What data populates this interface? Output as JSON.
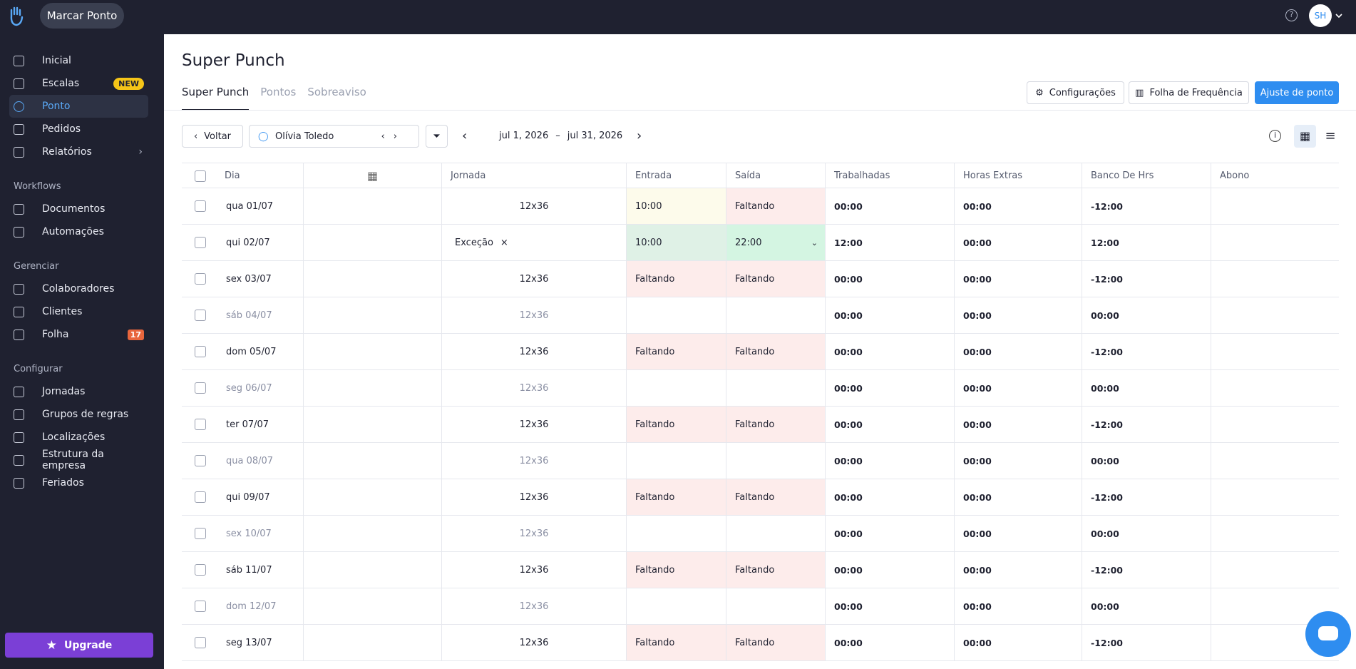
{
  "topbar": {
    "button": "Marcar Ponto",
    "avatar": "SH"
  },
  "sidebar": {
    "main": [
      {
        "label": "Inicial"
      },
      {
        "label": "Escalas",
        "badge": "NEW",
        "badge_color": "#f5c518"
      },
      {
        "label": "Ponto",
        "active": true
      },
      {
        "label": "Pedidos"
      },
      {
        "label": "Relatórios",
        "submenu": true
      }
    ],
    "sections": [
      {
        "title": "Workflows",
        "items": [
          {
            "label": "Documentos"
          },
          {
            "label": "Automações"
          }
        ]
      },
      {
        "title": "Gerenciar",
        "items": [
          {
            "label": "Colaboradores"
          },
          {
            "label": "Clientes"
          },
          {
            "label": "Folha",
            "badge": "17",
            "badge_color": "#e8663d"
          }
        ]
      },
      {
        "title": "Configurar",
        "items": [
          {
            "label": "Jornadas"
          },
          {
            "label": "Grupos de regras"
          },
          {
            "label": "Localizações"
          },
          {
            "label": "Estrutura da empresa"
          },
          {
            "label": "Feriados"
          }
        ]
      }
    ],
    "upgrade": "Upgrade"
  },
  "page": {
    "title": "Super Punch",
    "tabs": [
      "Super Punch",
      "Pontos",
      "Sobreaviso"
    ],
    "buttons": [
      "Configurações",
      "Folha de Frequência",
      "Ajuste de ponto"
    ]
  },
  "toolbar": {
    "back": "Voltar",
    "employee": "Olívia Toledo",
    "date_start": "jul 1, 2026",
    "date_sep": "–",
    "date_end": "jul 31, 2026"
  },
  "table": {
    "columns": [
      "Dia",
      "Jornada",
      "Entrada",
      "Saída",
      "Trabalhadas",
      "Horas Extras",
      "Banco De Hrs",
      "Abono"
    ],
    "rows": [
      {
        "dia": "qua 01/07",
        "jornada": "12x36",
        "entrada": "10:00",
        "saida": "Faltando",
        "trabalhadas": "00:00",
        "horas_extras": "00:00",
        "banco": "-12:00",
        "entrada_color": "#fdfbeb",
        "saida_color": "#fdeceb"
      },
      {
        "dia": "qui 02/07",
        "exception": "Exceção",
        "entrada": "10:00",
        "saida": "22:00",
        "trabalhadas": "12:00",
        "horas_extras": "00:00",
        "banco": "12:00",
        "entrada_color": "#dff1e6",
        "saida_color": "#d4f5e2",
        "saida_dropdown": true
      },
      {
        "dia": "sex 03/07",
        "jornada": "12x36",
        "entrada": "Faltando",
        "saida": "Faltando",
        "trabalhadas": "00:00",
        "horas_extras": "00:00",
        "banco": "-12:00",
        "entrada_color": "#fdeceb",
        "saida_color": "#fdeceb"
      },
      {
        "dia": "sáb 04/07",
        "jornada": "12x36",
        "entrada": null,
        "saida": null,
        "trabalhadas": "00:00",
        "horas_extras": "00:00",
        "banco": "00:00"
      },
      {
        "dia": "dom 05/07",
        "jornada": "12x36",
        "entrada": "Faltando",
        "saida": "Faltando",
        "trabalhadas": "00:00",
        "horas_extras": "00:00",
        "banco": "-12:00",
        "entrada_color": "#fdeceb",
        "saida_color": "#fdeceb"
      },
      {
        "dia": "seg 06/07",
        "jornada": "12x36",
        "entrada": null,
        "saida": null,
        "trabalhadas": "00:00",
        "horas_extras": "00:00",
        "banco": "00:00"
      },
      {
        "dia": "ter 07/07",
        "jornada": "12x36",
        "entrada": "Faltando",
        "saida": "Faltando",
        "trabalhadas": "00:00",
        "horas_extras": "00:00",
        "banco": "-12:00",
        "entrada_color": "#fdeceb",
        "saida_color": "#fdeceb"
      },
      {
        "dia": "qua 08/07",
        "jornada": "12x36",
        "entrada": null,
        "saida": null,
        "trabalhadas": "00:00",
        "horas_extras": "00:00",
        "banco": "00:00"
      },
      {
        "dia": "qui 09/07",
        "jornada": "12x36",
        "entrada": "Faltando",
        "saida": "Faltando",
        "trabalhadas": "00:00",
        "horas_extras": "00:00",
        "banco": "-12:00",
        "entrada_color": "#fdeceb",
        "saida_color": "#fdeceb"
      },
      {
        "dia": "sex 10/07",
        "jornada": "12x36",
        "entrada": null,
        "saida": null,
        "trabalhadas": "00:00",
        "horas_extras": "00:00",
        "banco": "00:00"
      },
      {
        "dia": "sáb 11/07",
        "jornada": "12x36",
        "entrada": "Faltando",
        "saida": "Faltando",
        "trabalhadas": "00:00",
        "horas_extras": "00:00",
        "banco": "-12:00",
        "entrada_color": "#fdeceb",
        "saida_color": "#fdeceb"
      },
      {
        "dia": "dom 12/07",
        "jornada": "12x36",
        "entrada": null,
        "saida": null,
        "trabalhadas": "00:00",
        "horas_extras": "00:00",
        "banco": "00:00"
      },
      {
        "dia": "seg 13/07",
        "jornada": "12x36",
        "entrada": "Faltando",
        "saida": "Faltando",
        "trabalhadas": "00:00",
        "horas_extras": "00:00",
        "banco": "-12:00",
        "entrada_color": "#fdeceb",
        "saida_color": "#fdeceb"
      }
    ]
  }
}
